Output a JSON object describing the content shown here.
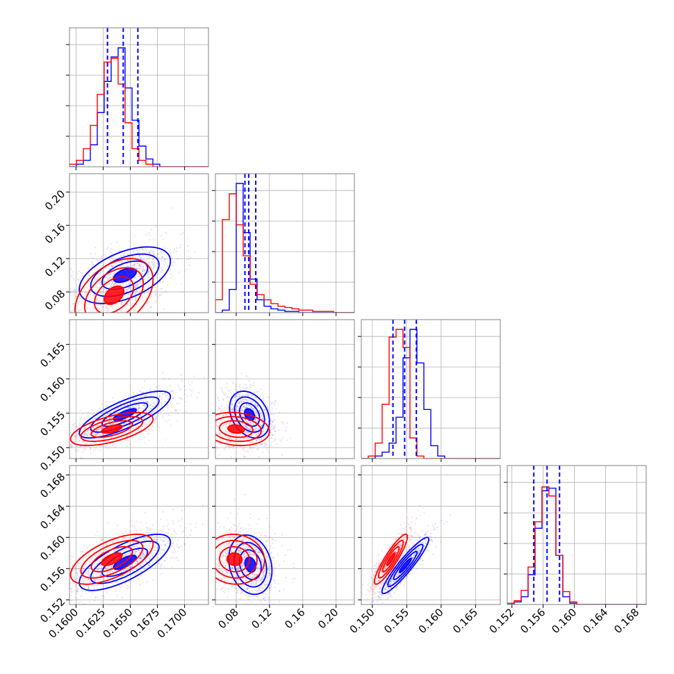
{
  "chart_data": {
    "type": "corner",
    "params": 4,
    "grid": true,
    "colors": {
      "blue": "#0000ff",
      "red": "#ff0000",
      "grid": "#b0b0b0",
      "frame": "#808080"
    },
    "series": [
      {
        "color": "blue",
        "quantiles_dashed": true
      },
      {
        "color": "red",
        "quantiles_dashed": false
      }
    ],
    "axes": [
      {
        "range": [
          0.1594,
          0.1722
        ],
        "ticks": [
          0.16,
          0.1625,
          0.165,
          0.1675,
          0.17
        ],
        "tick_labels": [
          "0.1600",
          "0.1625",
          "0.1650",
          "0.1675",
          "0.1700"
        ]
      },
      {
        "range": [
          0.055,
          0.222
        ],
        "ticks": [
          0.08,
          0.12,
          0.16,
          0.2
        ],
        "tick_labels": [
          "0.08",
          "0.12",
          "0.16",
          "0.20"
        ]
      },
      {
        "range": [
          0.1484,
          0.1686
        ],
        "ticks": [
          0.15,
          0.155,
          0.16,
          0.165
        ],
        "tick_labels": [
          "0.150",
          "0.155",
          "0.160",
          "0.165"
        ]
      },
      {
        "range": [
          0.1514,
          0.1692
        ],
        "ticks": [
          0.152,
          0.156,
          0.16,
          0.164,
          0.168
        ],
        "tick_labels": [
          "0.152",
          "0.156",
          "0.160",
          "0.164",
          "0.168"
        ]
      }
    ],
    "diagonals": [
      {
        "index": 0,
        "blue_hist": [
          0,
          0.02,
          0.05,
          0.17,
          0.42,
          0.66,
          0.85,
          0.92,
          0.61,
          0.36,
          0.16,
          0.06,
          0.02,
          0,
          0,
          0,
          0,
          0,
          0,
          0
        ],
        "red_hist": [
          0.02,
          0.05,
          0.14,
          0.32,
          0.56,
          0.81,
          0.84,
          0.64,
          0.34,
          0.14,
          0.05,
          0.02,
          0,
          0,
          0,
          0,
          0,
          0,
          0,
          0
        ],
        "blue_quantiles": [
          0.1629,
          0.16435,
          0.1657
        ],
        "red_peak": 0.84
      },
      {
        "index": 1,
        "blue_hist": [
          0,
          0.02,
          0.18,
          1.0,
          0.62,
          0.26,
          0.1,
          0.05,
          0.03,
          0.02,
          0.01,
          0.01,
          0,
          0,
          0,
          0,
          0,
          0,
          0,
          0
        ],
        "red_hist": [
          0.1,
          0.72,
          0.92,
          0.68,
          0.44,
          0.22,
          0.14,
          0.1,
          0.07,
          0.05,
          0.04,
          0.03,
          0.02,
          0.02,
          0.01,
          0.01,
          0.01,
          0,
          0,
          0
        ],
        "blue_quantiles": [
          0.0905,
          0.095,
          0.1035
        ],
        "red_peak": 0.92
      },
      {
        "index": 2,
        "blue_hist": [
          0,
          0,
          0.02,
          0.05,
          0.12,
          0.32,
          0.78,
          1.0,
          0.74,
          0.38,
          0.1,
          0.02,
          0,
          0,
          0,
          0,
          0,
          0,
          0,
          0
        ],
        "red_hist": [
          0,
          0.02,
          0.12,
          0.42,
          0.94,
          1.0,
          0.86,
          0.16,
          0.02,
          0,
          0,
          0,
          0,
          0,
          0,
          0,
          0,
          0,
          0,
          0
        ],
        "blue_quantiles": [
          0.153,
          0.1547,
          0.1564
        ],
        "red_peak": 1.0
      },
      {
        "index": 3,
        "blue_hist": [
          0,
          0.02,
          0.06,
          0.23,
          0.59,
          0.88,
          0.9,
          0.38,
          0.06,
          0.01,
          0,
          0,
          0,
          0,
          0,
          0,
          0,
          0,
          0,
          0
        ],
        "red_hist": [
          0.01,
          0.03,
          0.11,
          0.29,
          0.64,
          0.91,
          0.84,
          0.38,
          0.1,
          0.02,
          0,
          0,
          0,
          0,
          0,
          0,
          0,
          0,
          0,
          0
        ],
        "blue_quantiles": [
          0.1548,
          0.1565,
          0.1581
        ],
        "red_peak": 0.91
      }
    ],
    "pairs": [
      {
        "row": 1,
        "col": 0,
        "blue": {
          "mean": [
            0.1645,
            0.1
          ],
          "sd": [
            0.0021,
            0.017
          ],
          "rho": 0.5
        },
        "red": {
          "mean": [
            0.1635,
            0.076
          ],
          "sd": [
            0.0018,
            0.022
          ],
          "rho": 0.42
        }
      },
      {
        "row": 2,
        "col": 0,
        "blue": {
          "mean": [
            0.1645,
            0.1548
          ],
          "sd": [
            0.0021,
            0.0017
          ],
          "rho": 0.78
        },
        "red": {
          "mean": [
            0.1633,
            0.1527
          ],
          "sd": [
            0.0019,
            0.0012
          ],
          "rho": 0.6
        }
      },
      {
        "row": 2,
        "col": 1,
        "blue": {
          "mean": [
            0.096,
            0.1548
          ],
          "sd": [
            0.012,
            0.0017
          ],
          "rho": -0.3
        },
        "red": {
          "mean": [
            0.08,
            0.1527
          ],
          "sd": [
            0.02,
            0.0012
          ],
          "rho": -0.15
        }
      },
      {
        "row": 3,
        "col": 0,
        "blue": {
          "mean": [
            0.1645,
            0.1568
          ],
          "sd": [
            0.0021,
            0.0018
          ],
          "rho": 0.72
        },
        "red": {
          "mean": [
            0.1633,
            0.1572
          ],
          "sd": [
            0.0019,
            0.0016
          ],
          "rho": 0.62
        }
      },
      {
        "row": 3,
        "col": 1,
        "blue": {
          "mean": [
            0.097,
            0.1565
          ],
          "sd": [
            0.013,
            0.0019
          ],
          "rho": -0.2
        },
        "red": {
          "mean": [
            0.078,
            0.1572
          ],
          "sd": [
            0.018,
            0.0016
          ],
          "rho": -0.05
        }
      },
      {
        "row": 3,
        "col": 2,
        "blue": {
          "mean": [
            0.1548,
            0.1564
          ],
          "sd": [
            0.0017,
            0.0018
          ],
          "rho": 0.93
        },
        "red": {
          "mean": [
            0.1527,
            0.1572
          ],
          "sd": [
            0.0012,
            0.0016
          ],
          "rho": 0.9
        }
      }
    ]
  }
}
